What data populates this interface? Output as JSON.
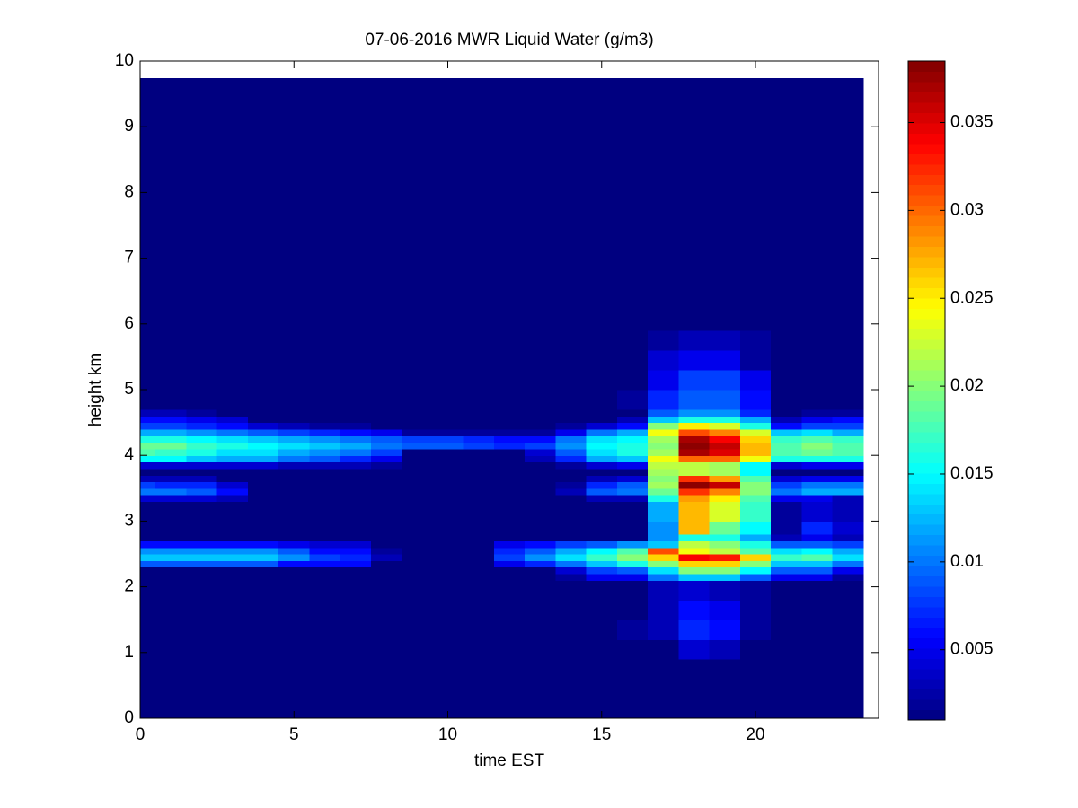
{
  "chart_data": {
    "type": "heatmap",
    "title": "07-06-2016 MWR Liquid Water (g/m3)",
    "xlabel": "time EST",
    "ylabel": "height km",
    "xlim": [
      0,
      24
    ],
    "xticks": [
      0,
      5,
      10,
      15,
      20
    ],
    "ylim": [
      0,
      10
    ],
    "yticks": [
      0,
      1,
      2,
      3,
      4,
      5,
      6,
      7,
      8,
      9,
      10
    ],
    "clim": [
      0.001,
      0.0385
    ],
    "cticks": [
      0.005,
      0.01,
      0.015,
      0.02,
      0.025,
      0.03,
      0.035
    ],
    "colormap": "jet",
    "x": [
      0,
      1,
      2,
      3,
      4,
      5,
      6,
      7,
      8,
      9,
      10,
      11,
      12,
      13,
      14,
      15,
      16,
      17,
      18,
      19,
      20,
      21,
      22,
      23
    ],
    "y_bins": [
      0,
      0.9,
      1.2,
      1.5,
      1.8,
      2.1,
      2.2,
      2.3,
      2.4,
      2.5,
      2.6,
      2.7,
      2.8,
      3.0,
      3.3,
      3.4,
      3.5,
      3.6,
      3.7,
      3.8,
      3.9,
      4.0,
      4.1,
      4.2,
      4.3,
      4.4,
      4.5,
      4.6,
      4.7,
      5.0,
      5.3,
      5.6,
      5.9,
      9.74
    ],
    "z": [
      [
        0.001,
        0.001,
        0.001,
        0.001,
        0.001,
        0.001,
        0.001,
        0.001,
        0.001,
        0.001,
        0.001,
        0.001,
        0.001,
        0.001,
        0.001,
        0.001,
        0.001,
        0.001,
        0.001,
        0.001,
        0.001,
        0.001,
        0.001,
        0.001
      ],
      [
        0.001,
        0.001,
        0.001,
        0.001,
        0.001,
        0.001,
        0.001,
        0.001,
        0.001,
        0.001,
        0.001,
        0.001,
        0.001,
        0.001,
        0.001,
        0.001,
        0.001,
        0.001,
        0.004,
        0.003,
        0.001,
        0.001,
        0.001,
        0.001
      ],
      [
        0.001,
        0.001,
        0.001,
        0.001,
        0.001,
        0.001,
        0.001,
        0.001,
        0.001,
        0.001,
        0.001,
        0.001,
        0.001,
        0.001,
        0.001,
        0.001,
        0.002,
        0.003,
        0.007,
        0.006,
        0.002,
        0.001,
        0.001,
        0.001
      ],
      [
        0.001,
        0.001,
        0.001,
        0.001,
        0.001,
        0.001,
        0.001,
        0.001,
        0.001,
        0.001,
        0.001,
        0.001,
        0.001,
        0.001,
        0.001,
        0.001,
        0.001,
        0.003,
        0.006,
        0.005,
        0.002,
        0.001,
        0.001,
        0.001
      ],
      [
        0.001,
        0.001,
        0.001,
        0.001,
        0.001,
        0.001,
        0.001,
        0.001,
        0.001,
        0.001,
        0.001,
        0.001,
        0.001,
        0.001,
        0.001,
        0.001,
        0.001,
        0.003,
        0.004,
        0.003,
        0.002,
        0.001,
        0.001,
        0.001
      ],
      [
        0.001,
        0.001,
        0.001,
        0.001,
        0.001,
        0.001,
        0.001,
        0.001,
        0.001,
        0.001,
        0.001,
        0.001,
        0.001,
        0.001,
        0.002,
        0.005,
        0.005,
        0.01,
        0.013,
        0.013,
        0.009,
        0.005,
        0.005,
        0.002
      ],
      [
        0.001,
        0.001,
        0.001,
        0.001,
        0.001,
        0.001,
        0.001,
        0.001,
        0.001,
        0.001,
        0.001,
        0.001,
        0.001,
        0.001,
        0.004,
        0.008,
        0.009,
        0.014,
        0.02,
        0.02,
        0.015,
        0.009,
        0.009,
        0.005
      ],
      [
        0.009,
        0.009,
        0.009,
        0.009,
        0.009,
        0.006,
        0.006,
        0.006,
        0.001,
        0.001,
        0.001,
        0.001,
        0.005,
        0.007,
        0.01,
        0.013,
        0.016,
        0.02,
        0.026,
        0.026,
        0.02,
        0.013,
        0.013,
        0.01
      ],
      [
        0.013,
        0.013,
        0.013,
        0.013,
        0.013,
        0.011,
        0.008,
        0.007,
        0.003,
        0.001,
        0.001,
        0.001,
        0.008,
        0.011,
        0.014,
        0.017,
        0.02,
        0.026,
        0.034,
        0.033,
        0.026,
        0.017,
        0.018,
        0.014
      ],
      [
        0.011,
        0.011,
        0.011,
        0.011,
        0.011,
        0.009,
        0.006,
        0.006,
        0.002,
        0.001,
        0.001,
        0.001,
        0.007,
        0.009,
        0.012,
        0.015,
        0.018,
        0.031,
        0.024,
        0.022,
        0.018,
        0.014,
        0.015,
        0.012
      ],
      [
        0.006,
        0.006,
        0.006,
        0.006,
        0.006,
        0.005,
        0.004,
        0.004,
        0.001,
        0.001,
        0.001,
        0.001,
        0.005,
        0.006,
        0.008,
        0.009,
        0.011,
        0.013,
        0.022,
        0.02,
        0.016,
        0.009,
        0.009,
        0.008
      ],
      [
        0.001,
        0.001,
        0.001,
        0.001,
        0.001,
        0.001,
        0.001,
        0.001,
        0.001,
        0.001,
        0.001,
        0.001,
        0.001,
        0.001,
        0.001,
        0.001,
        0.001,
        0.011,
        0.016,
        0.016,
        0.012,
        0.003,
        0.005,
        0.003
      ],
      [
        0.001,
        0.001,
        0.001,
        0.001,
        0.001,
        0.001,
        0.001,
        0.001,
        0.001,
        0.001,
        0.001,
        0.001,
        0.001,
        0.001,
        0.001,
        0.001,
        0.001,
        0.011,
        0.027,
        0.019,
        0.015,
        0.002,
        0.007,
        0.004
      ],
      [
        0.001,
        0.001,
        0.001,
        0.001,
        0.001,
        0.001,
        0.001,
        0.001,
        0.001,
        0.001,
        0.001,
        0.001,
        0.001,
        0.001,
        0.001,
        0.001,
        0.001,
        0.012,
        0.027,
        0.023,
        0.017,
        0.002,
        0.004,
        0.003
      ],
      [
        0.004,
        0.004,
        0.004,
        0.003,
        0.001,
        0.001,
        0.001,
        0.001,
        0.001,
        0.001,
        0.001,
        0.001,
        0.001,
        0.001,
        0.001,
        0.003,
        0.003,
        0.016,
        0.028,
        0.025,
        0.018,
        0.005,
        0.005,
        0.003
      ],
      [
        0.01,
        0.01,
        0.009,
        0.006,
        0.001,
        0.001,
        0.001,
        0.001,
        0.001,
        0.001,
        0.001,
        0.001,
        0.001,
        0.001,
        0.003,
        0.009,
        0.01,
        0.019,
        0.032,
        0.029,
        0.02,
        0.01,
        0.012,
        0.012
      ],
      [
        0.008,
        0.007,
        0.007,
        0.004,
        0.001,
        0.001,
        0.001,
        0.001,
        0.001,
        0.001,
        0.001,
        0.001,
        0.001,
        0.001,
        0.002,
        0.007,
        0.009,
        0.021,
        0.038,
        0.036,
        0.02,
        0.008,
        0.01,
        0.01
      ],
      [
        0.003,
        0.003,
        0.003,
        0.001,
        0.001,
        0.001,
        0.001,
        0.001,
        0.001,
        0.001,
        0.001,
        0.001,
        0.001,
        0.001,
        0.001,
        0.003,
        0.004,
        0.02,
        0.032,
        0.028,
        0.018,
        0.004,
        0.005,
        0.005
      ],
      [
        0.001,
        0.001,
        0.001,
        0.001,
        0.001,
        0.001,
        0.001,
        0.001,
        0.001,
        0.001,
        0.001,
        0.001,
        0.001,
        0.001,
        0.001,
        0.001,
        0.001,
        0.021,
        0.022,
        0.021,
        0.015,
        0.001,
        0.001,
        0.001
      ],
      [
        0.004,
        0.004,
        0.004,
        0.004,
        0.004,
        0.003,
        0.003,
        0.003,
        0.002,
        0.001,
        0.001,
        0.001,
        0.001,
        0.001,
        0.002,
        0.004,
        0.005,
        0.022,
        0.022,
        0.021,
        0.015,
        0.004,
        0.005,
        0.005
      ],
      [
        0.015,
        0.015,
        0.013,
        0.012,
        0.012,
        0.01,
        0.009,
        0.007,
        0.005,
        0.001,
        0.001,
        0.001,
        0.001,
        0.003,
        0.007,
        0.012,
        0.013,
        0.024,
        0.03,
        0.03,
        0.024,
        0.016,
        0.016,
        0.016
      ],
      [
        0.018,
        0.017,
        0.016,
        0.014,
        0.014,
        0.012,
        0.011,
        0.01,
        0.008,
        0.001,
        0.001,
        0.001,
        0.001,
        0.004,
        0.009,
        0.014,
        0.016,
        0.021,
        0.037,
        0.035,
        0.027,
        0.018,
        0.019,
        0.018
      ],
      [
        0.019,
        0.019,
        0.017,
        0.016,
        0.015,
        0.014,
        0.013,
        0.012,
        0.01,
        0.009,
        0.009,
        0.008,
        0.007,
        0.008,
        0.011,
        0.015,
        0.016,
        0.02,
        0.038,
        0.036,
        0.027,
        0.018,
        0.02,
        0.018
      ],
      [
        0.016,
        0.016,
        0.015,
        0.014,
        0.013,
        0.012,
        0.011,
        0.01,
        0.009,
        0.008,
        0.008,
        0.007,
        0.006,
        0.006,
        0.01,
        0.014,
        0.015,
        0.021,
        0.037,
        0.034,
        0.026,
        0.017,
        0.018,
        0.017
      ],
      [
        0.012,
        0.012,
        0.011,
        0.01,
        0.009,
        0.008,
        0.007,
        0.006,
        0.005,
        0.002,
        0.002,
        0.002,
        0.002,
        0.002,
        0.005,
        0.01,
        0.012,
        0.024,
        0.031,
        0.029,
        0.023,
        0.013,
        0.014,
        0.012
      ],
      [
        0.008,
        0.008,
        0.007,
        0.006,
        0.004,
        0.003,
        0.002,
        0.002,
        0.001,
        0.001,
        0.001,
        0.001,
        0.001,
        0.001,
        0.002,
        0.004,
        0.006,
        0.02,
        0.025,
        0.023,
        0.016,
        0.006,
        0.008,
        0.008
      ],
      [
        0.006,
        0.006,
        0.005,
        0.004,
        0.001,
        0.001,
        0.001,
        0.001,
        0.001,
        0.001,
        0.001,
        0.001,
        0.001,
        0.001,
        0.001,
        0.001,
        0.003,
        0.013,
        0.016,
        0.016,
        0.012,
        0.003,
        0.005,
        0.006
      ],
      [
        0.003,
        0.003,
        0.002,
        0.001,
        0.001,
        0.001,
        0.001,
        0.001,
        0.001,
        0.001,
        0.001,
        0.001,
        0.001,
        0.001,
        0.001,
        0.001,
        0.001,
        0.009,
        0.011,
        0.011,
        0.007,
        0.001,
        0.002,
        0.002
      ],
      [
        0.001,
        0.001,
        0.001,
        0.001,
        0.001,
        0.001,
        0.001,
        0.001,
        0.001,
        0.001,
        0.001,
        0.001,
        0.001,
        0.001,
        0.001,
        0.001,
        0.002,
        0.007,
        0.009,
        0.009,
        0.006,
        0.001,
        0.001,
        0.001
      ],
      [
        0.001,
        0.001,
        0.001,
        0.001,
        0.001,
        0.001,
        0.001,
        0.001,
        0.001,
        0.001,
        0.001,
        0.001,
        0.001,
        0.001,
        0.001,
        0.001,
        0.001,
        0.005,
        0.008,
        0.008,
        0.005,
        0.001,
        0.001,
        0.001
      ],
      [
        0.001,
        0.001,
        0.001,
        0.001,
        0.001,
        0.001,
        0.001,
        0.001,
        0.001,
        0.001,
        0.001,
        0.001,
        0.001,
        0.001,
        0.001,
        0.001,
        0.001,
        0.004,
        0.005,
        0.005,
        0.002,
        0.001,
        0.001,
        0.001
      ],
      [
        0.001,
        0.001,
        0.001,
        0.001,
        0.001,
        0.001,
        0.001,
        0.001,
        0.001,
        0.001,
        0.001,
        0.001,
        0.001,
        0.001,
        0.001,
        0.001,
        0.001,
        0.002,
        0.003,
        0.003,
        0.002,
        0.001,
        0.001,
        0.001
      ],
      [
        0.001,
        0.001,
        0.001,
        0.001,
        0.001,
        0.001,
        0.001,
        0.001,
        0.001,
        0.001,
        0.001,
        0.001,
        0.001,
        0.001,
        0.001,
        0.001,
        0.001,
        0.001,
        0.001,
        0.001,
        0.001,
        0.001,
        0.001,
        0.001
      ]
    ]
  }
}
